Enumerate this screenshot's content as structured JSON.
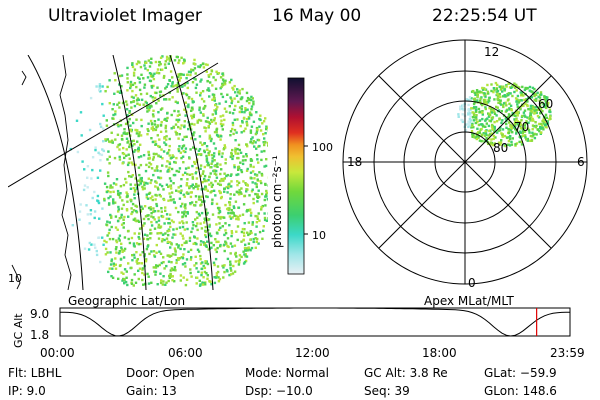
{
  "header": {
    "instrument": "Ultraviolet Imager",
    "date": "16 May 00",
    "time": "22:25:54 UT"
  },
  "left_panel": {
    "label": "Geographic Lat/Lon",
    "corner_tick": "10"
  },
  "colorbar": {
    "unit_label": "photon cm⁻²s⁻¹",
    "ticks": [
      "100",
      "10"
    ]
  },
  "polar_plot": {
    "label": "Apex MLat/MLT",
    "mlt_labels": [
      "12",
      "18",
      "6",
      "0"
    ],
    "lat_labels": [
      "60",
      "70",
      "80"
    ]
  },
  "altitude_plot": {
    "ylabel": "GC Alt",
    "yticks": [
      "9.0",
      "1.8"
    ],
    "xticks": [
      "00:00",
      "06:00",
      "12:00",
      "18:00",
      "23:59"
    ],
    "current_time_marker_hour": 22.43,
    "marker_color": "#e00000"
  },
  "info": {
    "flt": "Flt: LBHL",
    "ip": "IP:  9.0",
    "door": "Door: Open",
    "gain": "Gain: 13",
    "mode": "Mode: Normal",
    "dsp": "Dsp:  −10.0",
    "gcalt": "GC Alt: 3.8 Re",
    "seq": "Seq: 39",
    "glat": "GLat:  −59.9",
    "glon": "GLon: 148.6"
  }
}
